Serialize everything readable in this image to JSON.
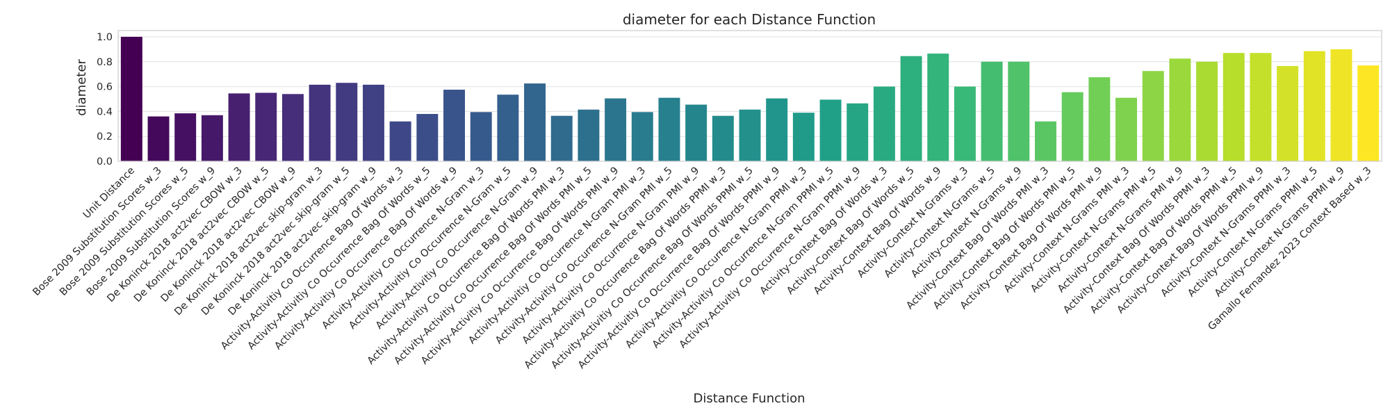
{
  "chart_data": {
    "type": "bar",
    "title": "diameter for each Distance Function",
    "xlabel": "Distance Function",
    "ylabel": "diameter",
    "ylim": [
      0,
      1.05
    ],
    "yticks": [
      "0.0",
      "0.2",
      "0.4",
      "0.6",
      "0.8",
      "1.0"
    ],
    "ytick_values": [
      0,
      0.2,
      0.4,
      0.6,
      0.8,
      1.0
    ],
    "grid": true,
    "palette": "viridis",
    "categories": [
      "Unit Distance",
      "Bose 2009 Substitution Scores w_3",
      "Bose 2009 Substitution Scores w_5",
      "Bose 2009 Substitution Scores w_9",
      "De Koninck 2018 act2vec CBOW w_3",
      "De Koninck 2018 act2vec CBOW w_5",
      "De Koninck 2018 act2vec CBOW w_9",
      "De Koninck 2018 act2vec skip-gram w_3",
      "De Koninck 2018 act2vec skip-gram w_5",
      "De Koninck 2018 act2vec skip-gram w_9",
      "Activity-Activitiy Co Occurrence Bag Of Words w_3",
      "Activity-Activitiy Co Occurrence Bag Of Words w_5",
      "Activity-Activitiy Co Occurrence Bag Of Words w_9",
      "Activity-Activitiy Co Occurrence N-Gram w_3",
      "Activity-Activitiy Co Occurrence N-Gram w_5",
      "Activity-Activitiy Co Occurrence N-Gram w_9",
      "Activity-Activitiy Co Occurrence Bag Of Words PMI w_3",
      "Activity-Activitiy Co Occurrence Bag Of Words PMI w_5",
      "Activity-Activitiy Co Occurrence Bag Of Words PMI w_9",
      "Activity-Activitiy Co Occurrence N-Gram PMI w_3",
      "Activity-Activitiy Co Occurrence N-Gram PMI w_5",
      "Activity-Activitiy Co Occurrence N-Gram PMI w_9",
      "Activity-Activitiy Co Occurrence Bag Of Words PPMI w_3",
      "Activity-Activitiy Co Occurrence Bag Of Words PPMI w_5",
      "Activity-Activitiy Co Occurrence Bag Of Words PPMI w_9",
      "Activity-Activitiy Co Occurrence N-Gram PPMI w_3",
      "Activity-Activitiy Co Occurrence N-Gram PPMI w_5",
      "Activity-Activitiy Co Occurrence N-Gram PPMI w_9",
      "Activity-Context Bag Of Words w_3",
      "Activity-Context Bag Of Words w_5",
      "Activity-Context Bag Of Words w_9",
      "Activity-Context N-Grams w_3",
      "Activity-Context N-Grams w_5",
      "Activity-Context N-Grams w_9",
      "Activity-Context Bag Of Words PMI w_3",
      "Activity-Context Bag Of Words PMI w_5",
      "Activity-Context Bag Of Words PMI w_9",
      "Activity-Context N-Grams PMI w_3",
      "Activity-Context N-Grams PMI w_5",
      "Activity-Context N-Grams PMI w_9",
      "Activity-Context Bag Of Words PPMI w_3",
      "Activity-Context Bag Of Words PPMI w_5",
      "Activity-Context Bag Of Words PPMI w_9",
      "Activity-Context N-Grams PPMI w_3",
      "Activity-Context N-Grams PPMI w_5",
      "Activity-Context N-Grams PPMI w_9",
      "Gamallo Fernandez 2023 Context Based w_3"
    ],
    "values": [
      1.0,
      0.36,
      0.385,
      0.37,
      0.545,
      0.55,
      0.54,
      0.615,
      0.63,
      0.615,
      0.32,
      0.38,
      0.575,
      0.395,
      0.535,
      0.625,
      0.365,
      0.415,
      0.505,
      0.395,
      0.51,
      0.455,
      0.365,
      0.415,
      0.505,
      0.39,
      0.495,
      0.465,
      0.6,
      0.845,
      0.865,
      0.6,
      0.8,
      0.8,
      0.32,
      0.555,
      0.675,
      0.51,
      0.725,
      0.825,
      0.8,
      0.87,
      0.87,
      0.765,
      0.885,
      0.9,
      0.77
    ]
  }
}
